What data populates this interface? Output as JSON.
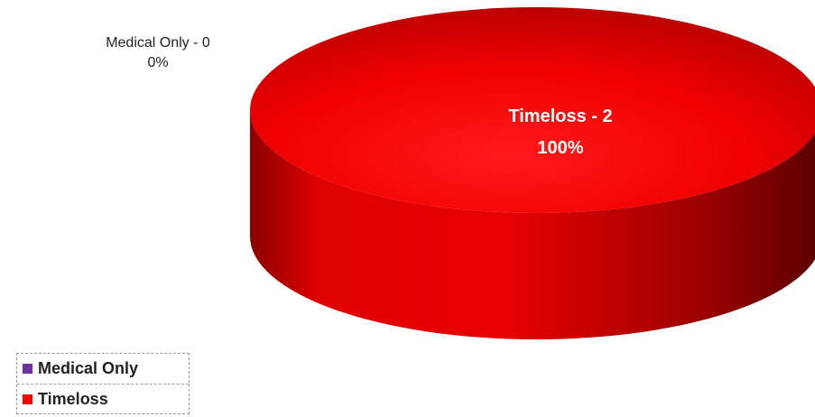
{
  "chart_data": {
    "type": "pie",
    "style": "3d",
    "categories": [
      "Medical Only",
      "Timeloss"
    ],
    "values": [
      0,
      2
    ],
    "percentages": [
      "0%",
      "100%"
    ],
    "colors": [
      "#7030a0",
      "#ff0000"
    ],
    "data_labels": [
      {
        "category": "Medical Only",
        "value_text": "Medical Only - 0",
        "percent_text": "0%"
      },
      {
        "category": "Timeloss",
        "value_text": "Timeloss - 2",
        "percent_text": "100%"
      }
    ],
    "legend": {
      "placement": "bottom-left",
      "entries": [
        {
          "label": "Medical Only",
          "color": "#7030a0"
        },
        {
          "label": "Timeloss",
          "color": "#ff0000"
        }
      ]
    }
  }
}
